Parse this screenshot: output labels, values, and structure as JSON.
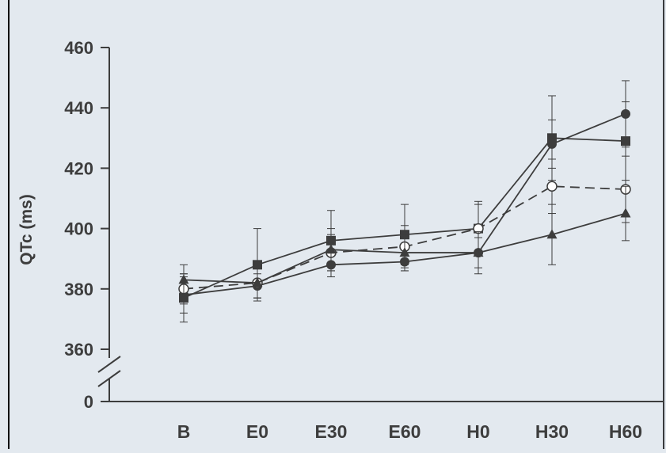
{
  "chart_data": {
    "type": "line",
    "title": "",
    "xlabel": "",
    "ylabel": "QTc (ms)",
    "categories": [
      "B",
      "E0",
      "E30",
      "E60",
      "H0",
      "H30",
      "H60"
    ],
    "yticks": [
      360,
      380,
      400,
      420,
      440,
      460
    ],
    "y_break_tick": 0,
    "ylim": [
      360,
      460
    ],
    "axis_break": true,
    "grid": false,
    "legend": "none",
    "series": [
      {
        "marker": "circle-filled",
        "dash": false,
        "values": [
          378,
          381,
          388,
          389,
          392,
          428,
          438
        ],
        "error": [
          6,
          4,
          4,
          3,
          5,
          8,
          11
        ]
      },
      {
        "marker": "square-filled",
        "dash": false,
        "values": [
          377,
          388,
          396,
          398,
          400,
          430,
          429
        ],
        "error": [
          8,
          12,
          10,
          10,
          9,
          14,
          13
        ]
      },
      {
        "marker": "circle-open",
        "dash": true,
        "values": [
          380,
          382,
          392,
          394,
          400,
          414,
          413
        ],
        "error": [
          5,
          5,
          6,
          7,
          8,
          9,
          11
        ]
      },
      {
        "marker": "triangle-filled",
        "dash": false,
        "values": [
          383,
          382,
          393,
          392,
          392,
          398,
          405
        ],
        "error": [
          5,
          5,
          7,
          6,
          7,
          10,
          9
        ]
      }
    ],
    "colors": {
      "background": "#e3e9ef",
      "ink": "#3d3d3d",
      "panel_border": "#000000"
    }
  }
}
